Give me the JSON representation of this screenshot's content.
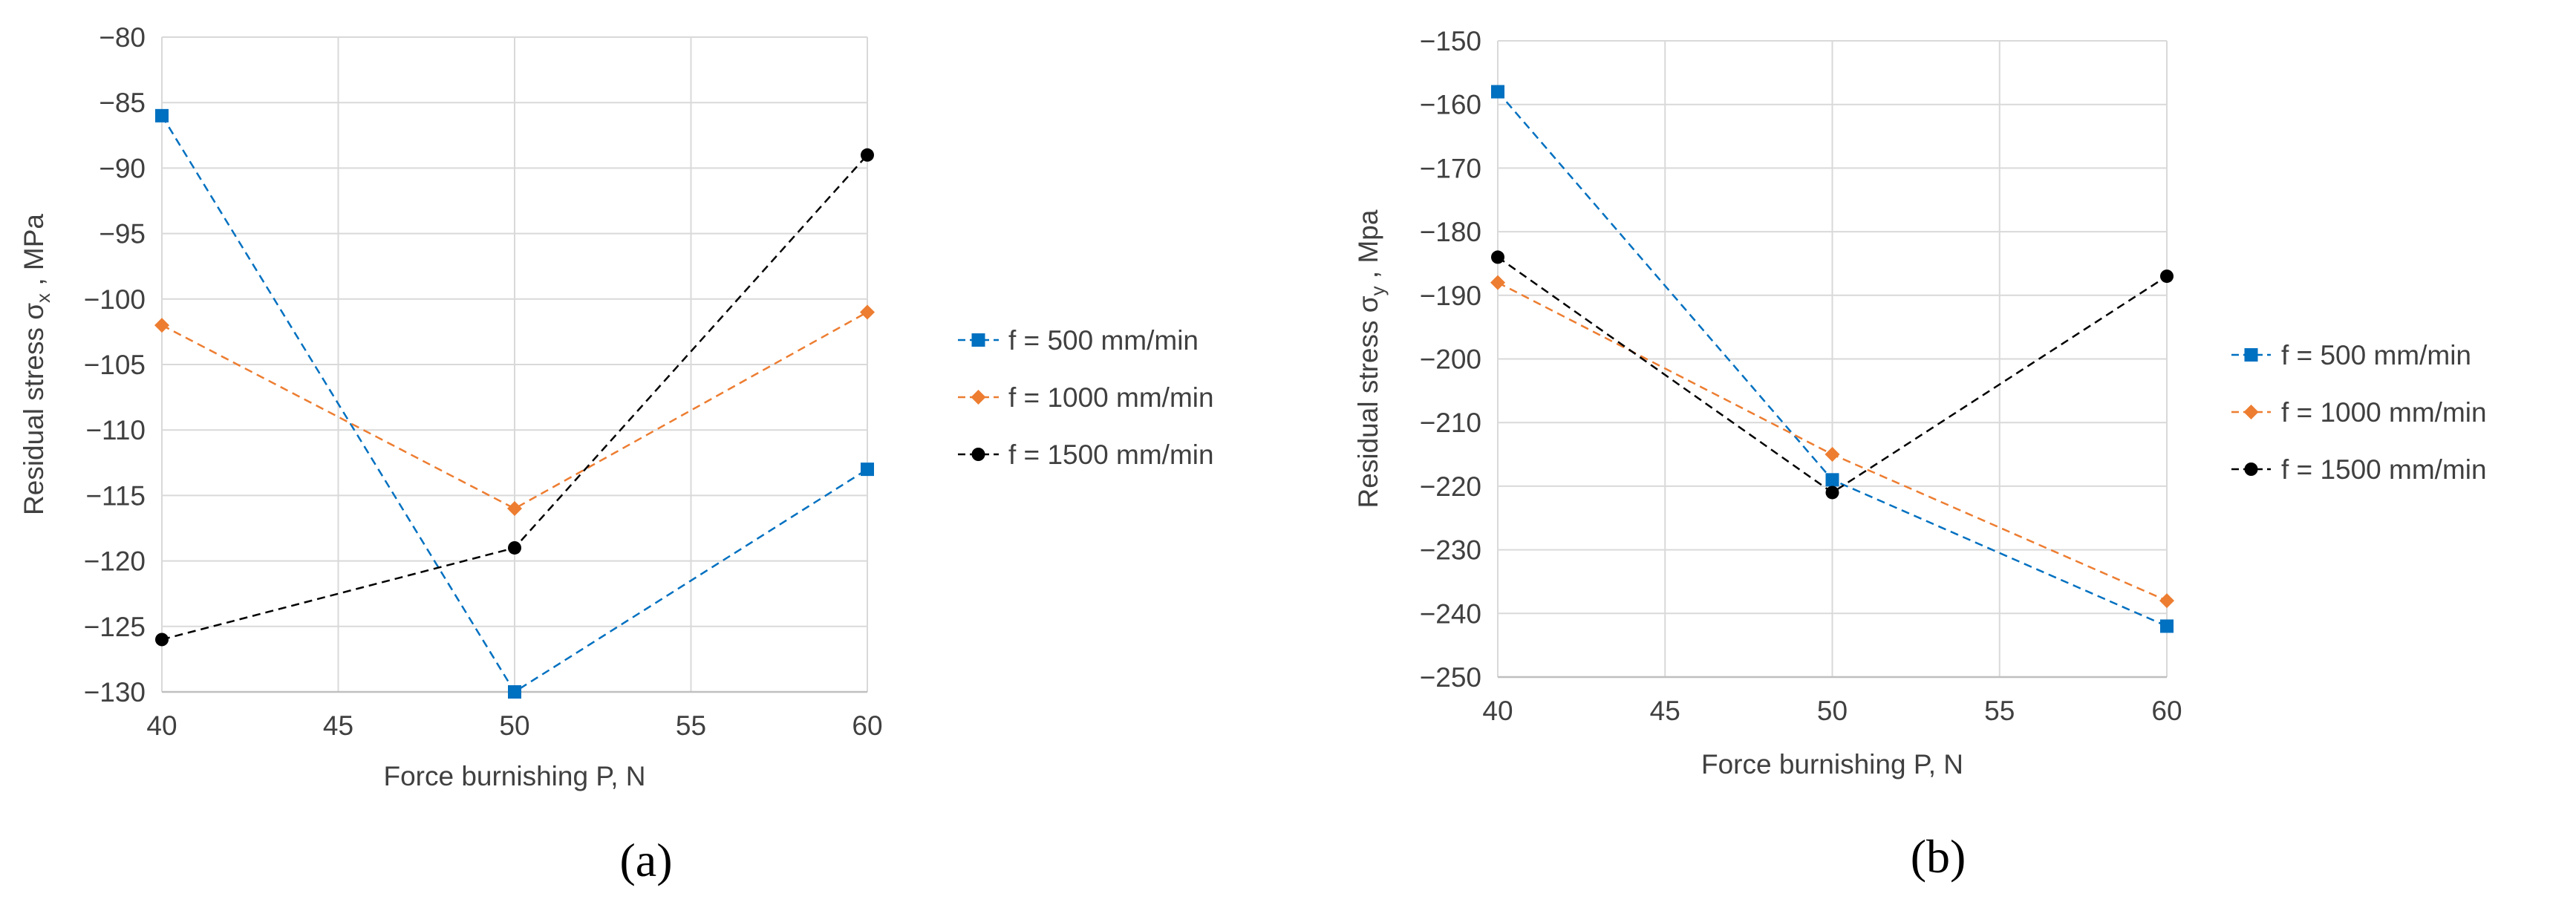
{
  "colors": {
    "s1": "#0070C0",
    "s2": "#ED7D31",
    "s3": "#000000",
    "grid": "#D9D9D9",
    "axis": "#BFBFBF",
    "text": "#404040"
  },
  "chart_data": [
    {
      "type": "line",
      "panel": "(a)",
      "title": "",
      "xlabel": "Force burnishing P, N",
      "ylabel_main": "Residual stress σ",
      "ylabel_sub": "x",
      "ylabel_tail": " , MPa",
      "xlim": [
        40,
        60
      ],
      "ylim": [
        -130,
        -80
      ],
      "xticks": [
        "40",
        "45",
        "50",
        "55",
        "60"
      ],
      "yticks": [
        "−130",
        "−125",
        "−120",
        "−115",
        "−110",
        "−105",
        "−100",
        "−95",
        "−90",
        "−85",
        "−80"
      ],
      "x": [
        40,
        50,
        60
      ],
      "series": [
        {
          "name": "f = 500 mm/min",
          "values": [
            -86,
            -130,
            -113
          ]
        },
        {
          "name": "f = 1000 mm/min",
          "values": [
            -102,
            -116,
            -101
          ]
        },
        {
          "name": "f = 1500 mm/min",
          "values": [
            -126,
            -119,
            -89
          ]
        }
      ],
      "legend": "right"
    },
    {
      "type": "line",
      "panel": "(b)",
      "title": "",
      "xlabel": "Force burnishing P, N",
      "ylabel_main": "Residual stress σ",
      "ylabel_sub": "y",
      "ylabel_tail": " , Mpa",
      "xlim": [
        40,
        60
      ],
      "ylim": [
        -250,
        -150
      ],
      "xticks": [
        "40",
        "45",
        "50",
        "55",
        "60"
      ],
      "yticks": [
        "−250",
        "−240",
        "−230",
        "−220",
        "−210",
        "−200",
        "−190",
        "−180",
        "−170",
        "−160",
        "−150"
      ],
      "x": [
        40,
        50,
        60
      ],
      "series": [
        {
          "name": "f = 500 mm/min",
          "values": [
            -158,
            -219,
            -242
          ]
        },
        {
          "name": "f = 1000 mm/min",
          "values": [
            -188,
            -215,
            -238
          ]
        },
        {
          "name": "f = 1500 mm/min",
          "values": [
            -184,
            -221,
            -187
          ]
        }
      ],
      "legend": "right"
    }
  ]
}
